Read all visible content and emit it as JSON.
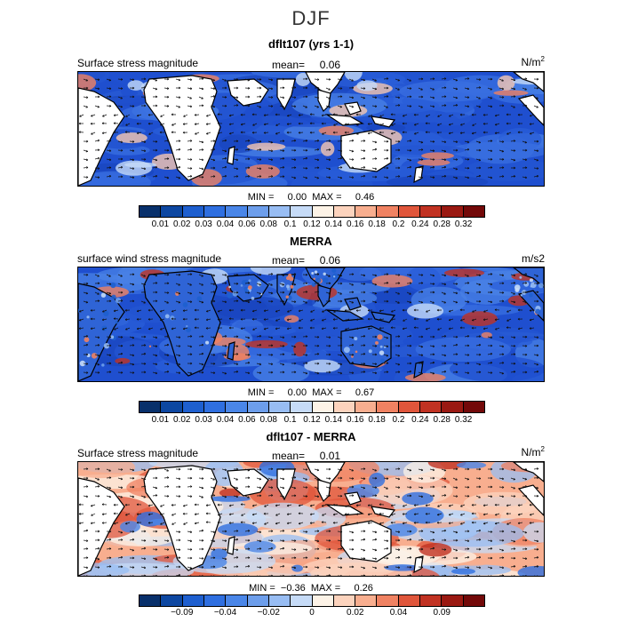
{
  "title": "DJF",
  "chart_data": [
    {
      "type": "heatmap",
      "title": "dflt107 (yrs 1-1)",
      "variable": "Surface stress magnitude",
      "mean_label": "mean=",
      "mean": "0.06",
      "units_base": "N/m",
      "units_sup": "2",
      "min_label": "MIN =",
      "min": "0.00",
      "max_label": "MAX =",
      "max": "0.46",
      "colorbar_ticks": [
        "0.01",
        "0.02",
        "0.03",
        "0.04",
        "0.06",
        "0.08",
        "0.1",
        "0.12",
        "0.14",
        "0.16",
        "0.18",
        "0.2",
        "0.24",
        "0.28",
        "0.32"
      ],
      "colors": [
        "#08306b",
        "#0d47a1",
        "#1e5fcf",
        "#2f6fe0",
        "#4a86e8",
        "#6d9eeb",
        "#98bdf3",
        "#c6dbf7",
        "#fdf3e7",
        "#fcd3bd",
        "#f8ae8f",
        "#f08262",
        "#e0563b",
        "#c13222",
        "#9a1912",
        "#730909"
      ]
    },
    {
      "type": "heatmap",
      "title": "MERRA",
      "variable": "surface wind stress magnitude",
      "mean_label": "mean=",
      "mean": "0.06",
      "units_base": "m/s2",
      "units_sup": "",
      "min_label": "MIN =",
      "min": "0.00",
      "max_label": "MAX =",
      "max": "0.67",
      "colorbar_ticks": [
        "0.01",
        "0.02",
        "0.03",
        "0.04",
        "0.06",
        "0.08",
        "0.1",
        "0.12",
        "0.14",
        "0.16",
        "0.18",
        "0.2",
        "0.24",
        "0.28",
        "0.32"
      ],
      "colors": [
        "#08306b",
        "#0d47a1",
        "#1e5fcf",
        "#2f6fe0",
        "#4a86e8",
        "#6d9eeb",
        "#98bdf3",
        "#c6dbf7",
        "#fdf3e7",
        "#fcd3bd",
        "#f8ae8f",
        "#f08262",
        "#e0563b",
        "#c13222",
        "#9a1912",
        "#730909"
      ]
    },
    {
      "type": "heatmap",
      "title": "dflt107 - MERRA",
      "variable": "Surface stress magnitude",
      "mean_label": "mean=",
      "mean": "0.01",
      "units_base": "N/m",
      "units_sup": "2",
      "min_label": "MIN =",
      "min": "−0.36",
      "max_label": "MAX =",
      "max": "0.26",
      "colorbar_ticks": [
        "",
        "−0.09",
        "",
        "−0.04",
        "",
        "−0.02",
        "",
        "0",
        "",
        "0.02",
        "",
        "0.04",
        "",
        "0.09",
        ""
      ],
      "colors": [
        "#08306b",
        "#0d47a1",
        "#1e5fcf",
        "#2f6fe0",
        "#4a86e8",
        "#6d9eeb",
        "#98bdf3",
        "#c6dbf7",
        "#fdf3e7",
        "#fcd3bd",
        "#f8ae8f",
        "#f08262",
        "#e0563b",
        "#c13222",
        "#9a1912",
        "#730909"
      ]
    }
  ]
}
